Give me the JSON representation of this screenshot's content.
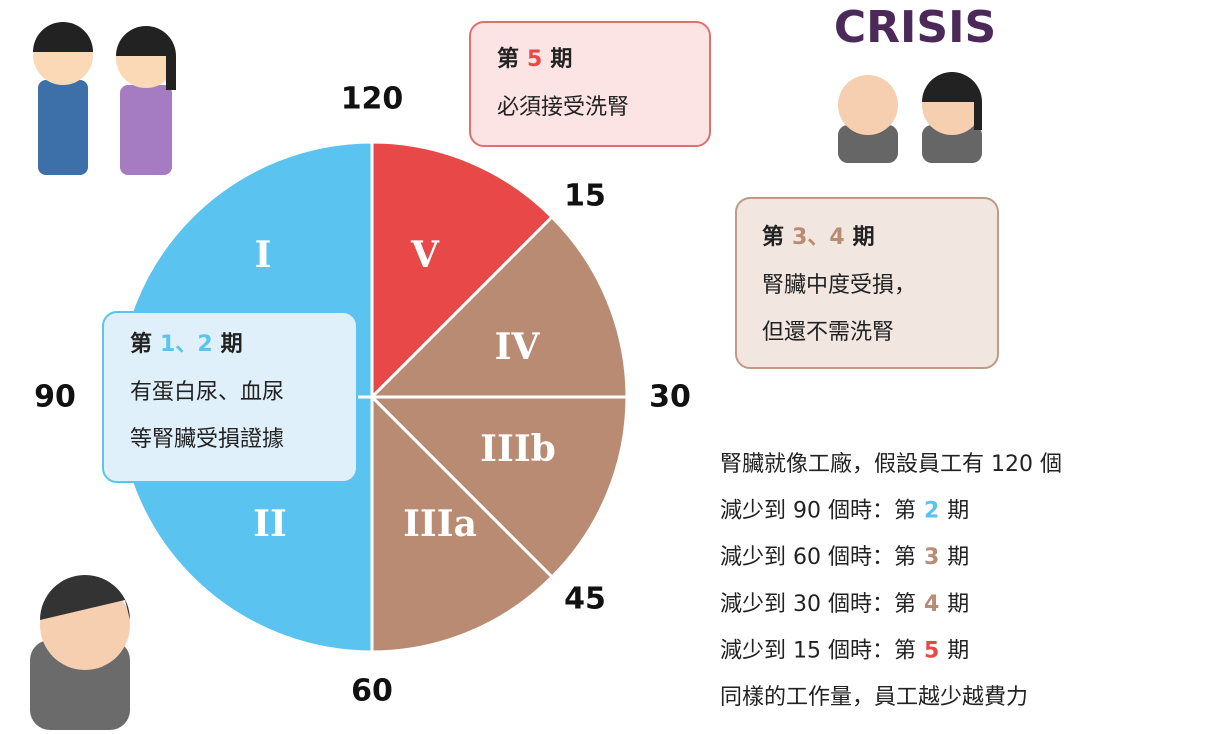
{
  "dial_labels": [
    "120",
    "15",
    "30",
    "45",
    "60",
    "90"
  ],
  "segments": [
    "I",
    "V",
    "IV",
    "IIIb",
    "IIIa",
    "II"
  ],
  "crisis_label": "CRISIS",
  "callouts": [
    {
      "prefix": "第",
      "num": "5",
      "suffix": "期",
      "lines": [
        "必須接受洗腎"
      ]
    },
    {
      "prefix": "第",
      "num": "3、4",
      "suffix": "期",
      "lines": [
        "腎臟中度受損，",
        "但還不需洗腎"
      ]
    },
    {
      "prefix": "第",
      "num": "1、2",
      "suffix": "期",
      "lines": [
        "有蛋白尿、血尿",
        "等腎臟受損證據"
      ]
    }
  ],
  "notes": [
    {
      "text": "腎臟就像工廠，假設員工有 120 個"
    },
    {
      "text": "減少到 90 個時：第",
      "num": "2",
      "suffix": "期"
    },
    {
      "text": "減少到 60 個時：第",
      "num": "3",
      "suffix": "期"
    },
    {
      "text": "減少到 30 個時：第",
      "num": "4",
      "suffix": "期"
    },
    {
      "text": "減少到 15 個時：第",
      "num": "5",
      "suffix": "期"
    },
    {
      "text": "同樣的工作量，員工越少越費力"
    }
  ]
}
